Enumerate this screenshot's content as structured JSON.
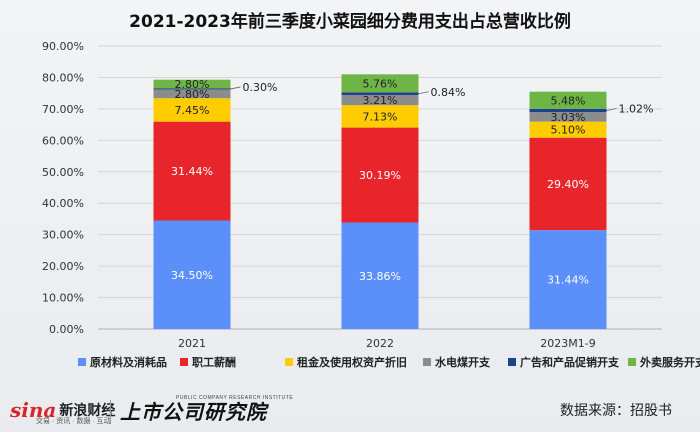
{
  "chart_data": {
    "type": "bar",
    "stacked": true,
    "title": "2021-2023年前三季度小菜园细分费用支出占总营收比例",
    "categories": [
      "2021",
      "2022",
      "2023M1-9"
    ],
    "series": [
      {
        "name": "原材料及消耗品",
        "color": "#5b8ff9",
        "values": [
          34.5,
          33.86,
          31.44
        ],
        "labels": [
          "34.50%",
          "33.86%",
          "31.44%"
        ]
      },
      {
        "name": "职工薪酬",
        "color": "#e8252a",
        "values": [
          31.44,
          30.19,
          29.4
        ],
        "labels": [
          "31.44%",
          "30.19%",
          "29.40%"
        ]
      },
      {
        "name": "租金及使用权资产折旧",
        "color": "#ffcc00",
        "values": [
          7.45,
          7.13,
          5.1
        ],
        "labels": [
          "7.45%",
          "7.13%",
          "5.10%"
        ]
      },
      {
        "name": "水电煤开支",
        "color": "#8c8c8c",
        "values": [
          2.8,
          3.21,
          3.03
        ],
        "labels": [
          "2.80%",
          "3.21%",
          "3.03%"
        ]
      },
      {
        "name": "广告和产品促销开支",
        "color": "#1f3f8f",
        "values": [
          0.3,
          0.84,
          1.02
        ],
        "labels": [
          "0.30%",
          "0.84%",
          "1.02%"
        ]
      },
      {
        "name": "外卖服务开支",
        "color": "#6fb545",
        "values": [
          2.8,
          5.76,
          5.48
        ],
        "labels": [
          "2.80%",
          "5.76%",
          "5.48%"
        ]
      }
    ],
    "yticks": [
      "0.00%",
      "10.00%",
      "20.00%",
      "30.00%",
      "40.00%",
      "50.00%",
      "60.00%",
      "70.00%",
      "80.00%",
      "90.00%"
    ],
    "ylim": [
      0,
      90
    ],
    "grid": true,
    "legend_position": "bottom"
  },
  "footer": {
    "sina_logo_word": "sina",
    "sina_logo_cn": "新浪财经",
    "sina_logo_sub": "交易 · 资讯 · 数据 · 互动",
    "sspi_logo_cn": "上市公司研究院",
    "sspi_logo_en": "PUBLIC COMPANY RESEARCH INSTITUTE",
    "source": "数据来源：招股书"
  }
}
